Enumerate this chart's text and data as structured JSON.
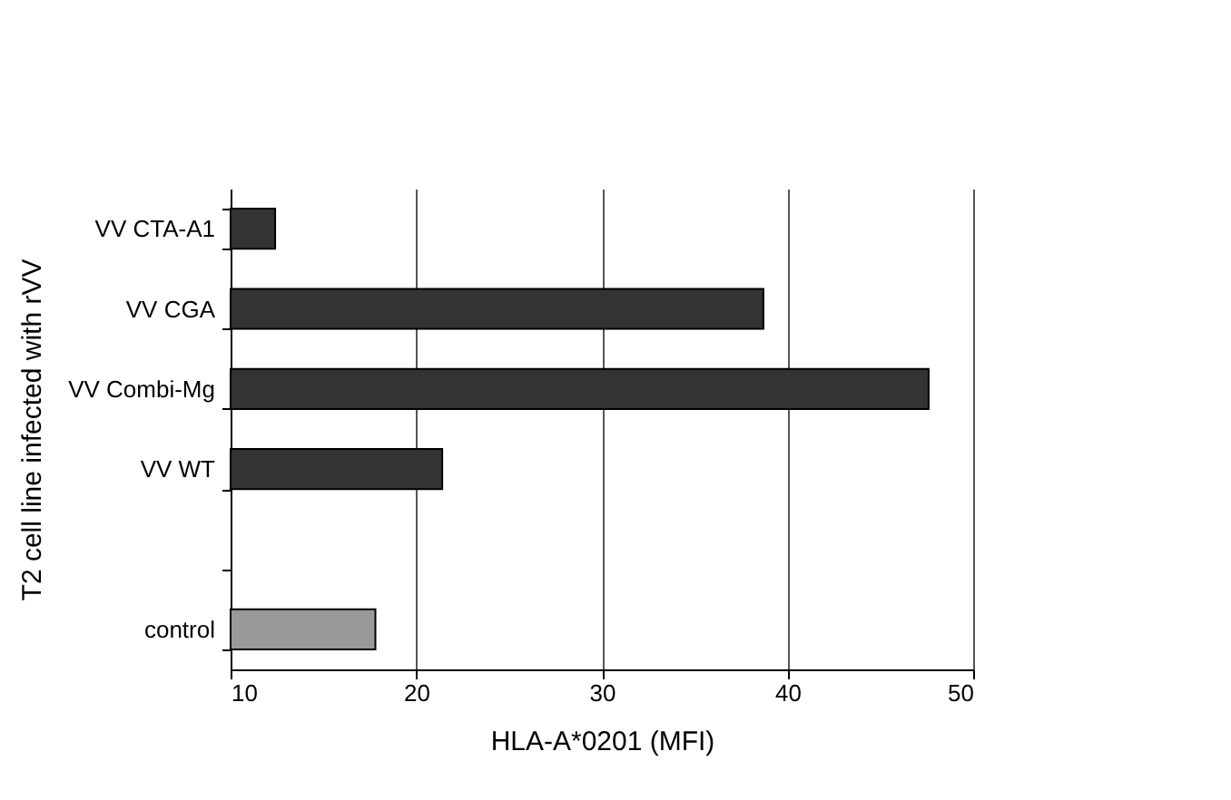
{
  "chart_data": {
    "type": "bar",
    "orientation": "horizontal",
    "xlabel": "HLA-A*0201  (MFI)",
    "ylabel": "T2 cell line infected with rVV",
    "categories": [
      "VV CTA-A1",
      "VV CGA",
      "VV Combi-Mg",
      "VV WT",
      null,
      "control"
    ],
    "values": [
      12.4,
      38.7,
      47.6,
      21.4,
      null,
      17.8
    ],
    "colors": [
      "#333333",
      "#333333",
      "#333333",
      "#333333",
      "#333333",
      "#999999"
    ],
    "xlim": [
      10,
      50
    ],
    "xticks": [
      10,
      20,
      30,
      40,
      50
    ],
    "grid": "x"
  }
}
